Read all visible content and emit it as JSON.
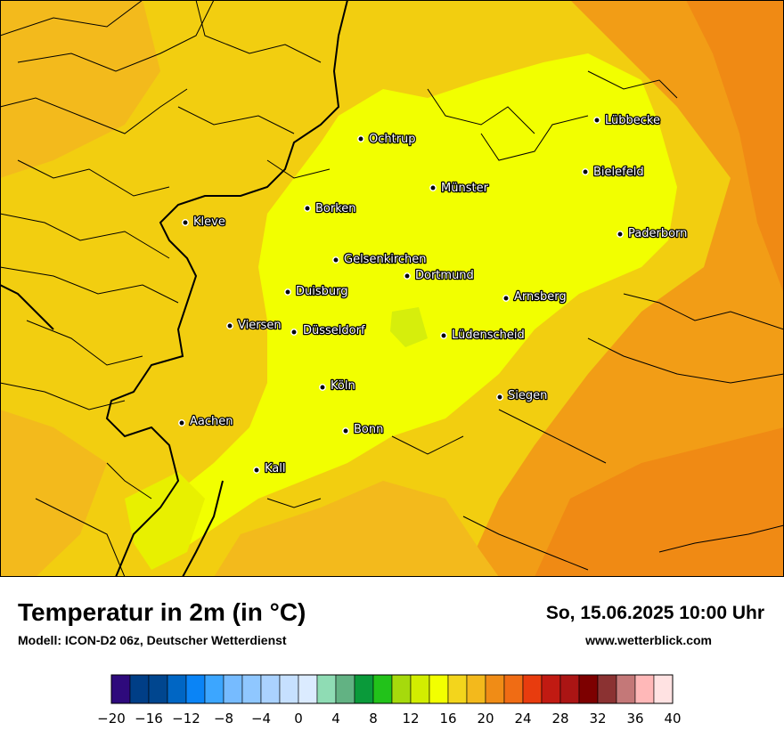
{
  "title": "Temperatur in 2m (in °C)",
  "model": "Modell: ICON-D2 06z, Deutscher Wetterdienst",
  "datetime": "So, 15.06.2025 10:00 Uhr",
  "website": "www.wetterblick.com",
  "cities": [
    {
      "name": "Lübbecke"
    },
    {
      "name": "Ochtrup"
    },
    {
      "name": "Bielefeld"
    },
    {
      "name": "Münster"
    },
    {
      "name": "Borken"
    },
    {
      "name": "Kleve"
    },
    {
      "name": "Paderborn"
    },
    {
      "name": "Gelsenkirchen"
    },
    {
      "name": "Dortmund"
    },
    {
      "name": "Duisburg"
    },
    {
      "name": "Arnsberg"
    },
    {
      "name": "Viersen"
    },
    {
      "name": "Düsseldorf"
    },
    {
      "name": "Lüdenscheid"
    },
    {
      "name": "Köln"
    },
    {
      "name": "Siegen"
    },
    {
      "name": "Aachen"
    },
    {
      "name": "Bonn"
    },
    {
      "name": "Kall"
    }
  ],
  "legend": {
    "min": -20,
    "max": 40,
    "step": 2,
    "tick_labels": [
      "−20",
      "−16",
      "−12",
      "−8",
      "−4",
      "0",
      "4",
      "8",
      "12",
      "16",
      "20",
      "24",
      "28",
      "32",
      "36",
      "40"
    ],
    "colors": [
      "#2e0a7c",
      "#003e86",
      "#00468f",
      "#0066c4",
      "#0a84f6",
      "#3ca6ff",
      "#76bbff",
      "#8fc7ff",
      "#aad2ff",
      "#c6e0ff",
      "#dbebff",
      "#8fdcb4",
      "#62b283",
      "#0a9a3a",
      "#22c21a",
      "#a6da0c",
      "#d2ee00",
      "#f2ff00",
      "#f3d51c",
      "#f3b91c",
      "#f08c16",
      "#f06c14",
      "#e83c0e",
      "#c11a12",
      "#ab1514",
      "#7d0000",
      "#8b3232",
      "#c47878",
      "#ffb8b8",
      "#ffe2e2"
    ]
  }
}
